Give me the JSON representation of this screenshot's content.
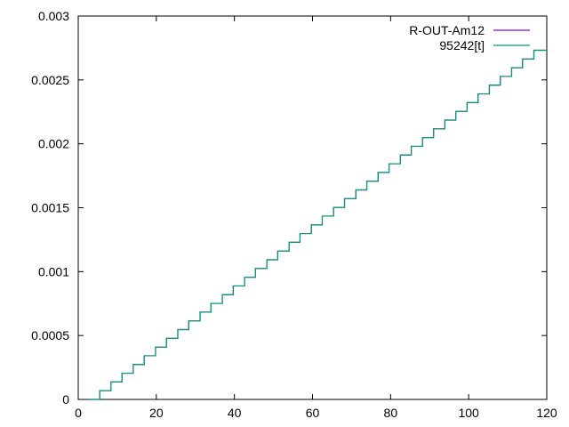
{
  "chart_data": {
    "type": "line",
    "title": "",
    "xlabel": "",
    "ylabel": "",
    "xlim": [
      0,
      120
    ],
    "ylim": [
      0,
      0.003
    ],
    "xticks": [
      0,
      20,
      40,
      60,
      80,
      100,
      120
    ],
    "xtick_labels": [
      "0",
      "20",
      "40",
      "60",
      "80",
      "100",
      "120"
    ],
    "yticks": [
      0,
      0.0005,
      0.001,
      0.0015,
      0.002,
      0.0025,
      0.003
    ],
    "ytick_labels": [
      "0",
      "0.0005",
      "0.001",
      "0.0015",
      "0.002",
      "0.0025",
      "0.003"
    ],
    "grid": false,
    "legend_position": "top-right",
    "step_shape": "staircase",
    "series": [
      {
        "name": "R-OUT-Am12",
        "color": "#9400d3",
        "x": [
          2.7,
          5.5,
          8.4,
          11.2,
          14.1,
          16.9,
          19.8,
          22.6,
          25.5,
          28.3,
          31.2,
          34.0,
          36.9,
          39.7,
          42.6,
          45.4,
          48.3,
          51.1,
          54.0,
          56.8,
          59.7,
          62.5,
          65.4,
          68.2,
          71.1,
          73.9,
          76.8,
          79.6,
          82.5,
          85.3,
          88.2,
          91.0,
          93.9,
          96.7,
          99.6,
          102.4,
          105.3,
          108.1,
          111.0,
          113.8,
          116.7,
          120.0
        ],
        "y": [
          0.0,
          6.83e-05,
          0.0001366,
          0.0002049,
          0.0002732,
          0.0003415,
          0.0004098,
          0.0004781,
          0.0005464,
          0.0006147,
          0.000683,
          0.0007513,
          0.0008196,
          0.0008879,
          0.0009562,
          0.0010245,
          0.0010928,
          0.0011611,
          0.0012294,
          0.0012977,
          0.001366,
          0.0014343,
          0.0015026,
          0.0015709,
          0.0016392,
          0.0017075,
          0.0017758,
          0.0018441,
          0.0019124,
          0.0019807,
          0.002049,
          0.0021173,
          0.0021856,
          0.0022539,
          0.0023222,
          0.0023905,
          0.0024588,
          0.0025271,
          0.0025954,
          0.0026637,
          0.002732,
          0.002732
        ]
      },
      {
        "name": "95242[t]",
        "color": "#009e73",
        "x": [
          2.7,
          5.5,
          8.4,
          11.2,
          14.1,
          16.9,
          19.8,
          22.6,
          25.5,
          28.3,
          31.2,
          34.0,
          36.9,
          39.7,
          42.6,
          45.4,
          48.3,
          51.1,
          54.0,
          56.8,
          59.7,
          62.5,
          65.4,
          68.2,
          71.1,
          73.9,
          76.8,
          79.6,
          82.5,
          85.3,
          88.2,
          91.0,
          93.9,
          96.7,
          99.6,
          102.4,
          105.3,
          108.1,
          111.0,
          113.8,
          116.7,
          120.0
        ],
        "y": [
          0.0,
          6.83e-05,
          0.0001366,
          0.0002049,
          0.0002732,
          0.0003415,
          0.0004098,
          0.0004781,
          0.0005464,
          0.0006147,
          0.000683,
          0.0007513,
          0.0008196,
          0.0008879,
          0.0009562,
          0.0010245,
          0.0010928,
          0.0011611,
          0.0012294,
          0.0012977,
          0.001366,
          0.0014343,
          0.0015026,
          0.0015709,
          0.0016392,
          0.0017075,
          0.0017758,
          0.0018441,
          0.0019124,
          0.0019807,
          0.002049,
          0.0021173,
          0.0021856,
          0.0022539,
          0.0023222,
          0.0023905,
          0.0024588,
          0.0025271,
          0.0025954,
          0.0026637,
          0.002732,
          0.002732
        ]
      }
    ]
  }
}
